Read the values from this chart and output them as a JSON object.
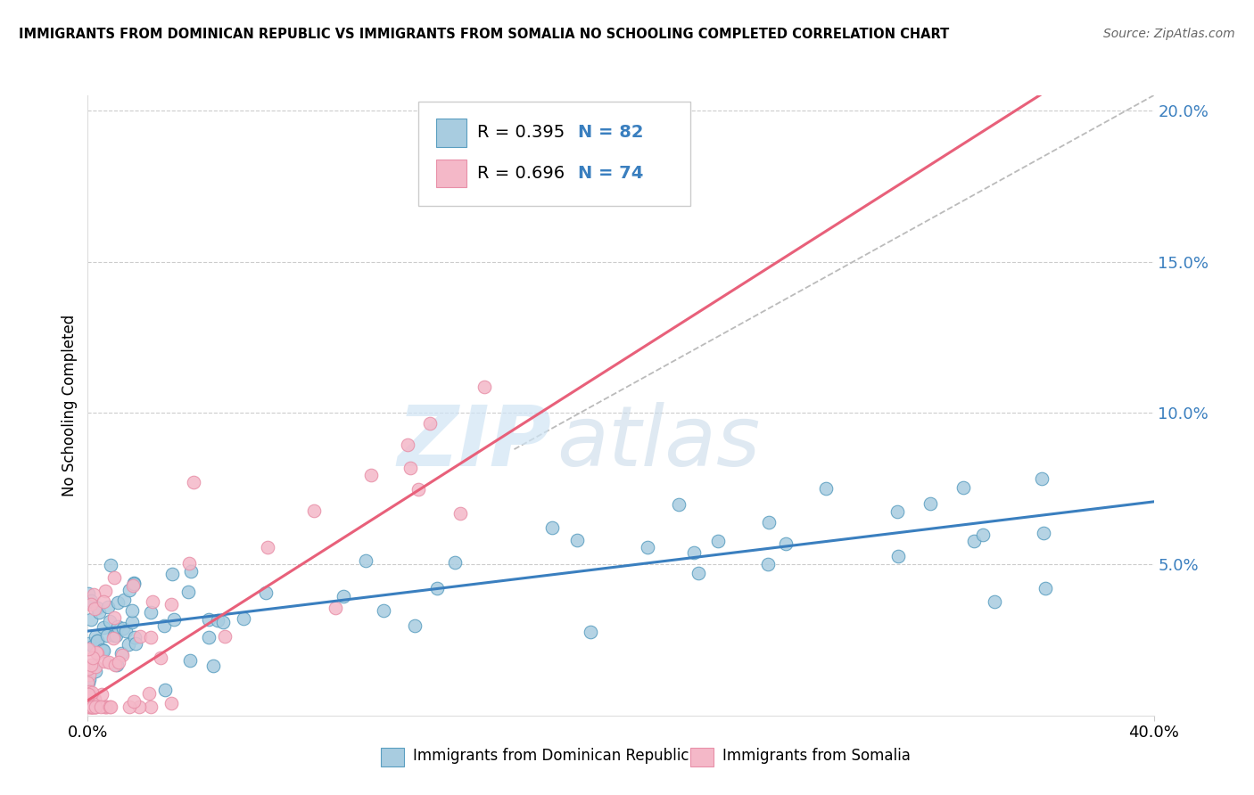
{
  "title": "IMMIGRANTS FROM DOMINICAN REPUBLIC VS IMMIGRANTS FROM SOMALIA NO SCHOOLING COMPLETED CORRELATION CHART",
  "source": "Source: ZipAtlas.com",
  "ylabel": "No Schooling Completed",
  "xlim": [
    0.0,
    0.4
  ],
  "ylim": [
    0.0,
    0.205
  ],
  "watermark_zip": "ZIP",
  "watermark_atlas": "atlas",
  "legend_r1": "R = 0.395",
  "legend_n1": "N = 82",
  "legend_r2": "R = 0.696",
  "legend_n2": "N = 74",
  "color_blue": "#a8cce0",
  "color_pink": "#f4b8c8",
  "color_blue_line": "#3a7fbf",
  "color_pink_line": "#e8607a",
  "color_blue_edge": "#5a9ec0",
  "color_pink_edge": "#e890a8",
  "label_blue": "Immigrants from Dominican Republic",
  "label_pink": "Immigrants from Somalia"
}
